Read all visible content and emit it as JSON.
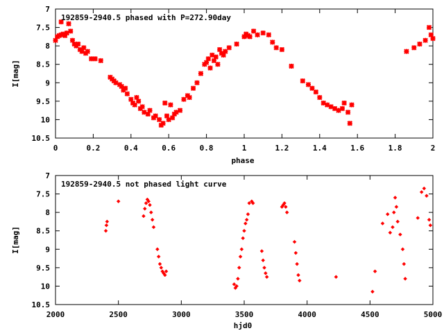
{
  "chart_data": [
    {
      "type": "scatter",
      "title": "192859-2940.5 phased with P=272.90day",
      "xlabel": "phase",
      "ylabel": "I[mag]",
      "xlim": [
        0,
        2
      ],
      "ylim": [
        10.5,
        7
      ],
      "y_inverted": true,
      "xticks": [
        "0",
        "0.2",
        "0.4",
        "0.6",
        "0.8",
        "1",
        "1.2",
        "1.4",
        "1.6",
        "1.8",
        "2"
      ],
      "yticks": [
        "7",
        "7.5",
        "8",
        "8.5",
        "9",
        "9.5",
        "10",
        "10.5"
      ],
      "grid": false,
      "marker_color": "#ff0000",
      "series": [
        {
          "x": [
            0.0,
            0.01,
            0.02,
            0.03,
            0.03,
            0.04,
            0.05,
            0.06,
            0.07,
            0.08,
            0.09,
            0.1,
            0.11,
            0.12,
            0.13,
            0.14,
            0.15,
            0.16,
            0.17,
            0.19,
            0.21,
            0.24,
            0.29,
            0.3,
            0.31,
            0.32,
            0.34,
            0.35,
            0.36,
            0.37,
            0.38,
            0.4,
            0.41,
            0.42,
            0.43,
            0.44,
            0.45,
            0.46,
            0.47,
            0.49,
            0.5,
            0.52,
            0.53,
            0.55,
            0.56,
            0.57,
            0.58,
            0.59,
            0.6,
            0.61,
            0.62,
            0.63,
            0.64,
            0.66,
            0.68,
            0.7,
            0.71,
            0.73,
            0.75,
            0.77,
            0.79,
            0.8,
            0.81,
            0.82,
            0.83,
            0.84,
            0.85,
            0.86,
            0.87,
            0.88,
            0.89,
            0.9,
            0.92,
            0.96,
            1.0,
            1.01,
            1.02,
            1.03,
            1.05,
            1.07,
            1.1,
            1.13,
            1.15,
            1.17,
            1.2,
            1.25,
            1.31,
            1.34,
            1.36,
            1.38,
            1.4,
            1.42,
            1.44,
            1.46,
            1.48,
            1.5,
            1.52,
            1.53,
            1.55,
            1.56,
            1.57,
            1.86,
            1.9,
            1.93,
            1.96,
            1.98,
            1.99,
            2.0
          ],
          "y": [
            7.85,
            7.75,
            7.72,
            7.35,
            7.7,
            7.68,
            7.72,
            7.65,
            7.4,
            7.6,
            7.85,
            7.95,
            8.0,
            7.95,
            8.1,
            8.15,
            8.05,
            8.2,
            8.15,
            8.35,
            8.35,
            8.4,
            8.85,
            8.9,
            8.95,
            9.0,
            9.05,
            9.1,
            9.2,
            9.15,
            9.3,
            9.45,
            9.55,
            9.6,
            9.4,
            9.5,
            9.7,
            9.65,
            9.8,
            9.85,
            9.75,
            9.95,
            9.9,
            10.0,
            10.15,
            10.1,
            9.55,
            9.9,
            10.0,
            9.6,
            9.95,
            9.85,
            9.8,
            9.75,
            9.45,
            9.35,
            9.4,
            9.15,
            9.0,
            8.75,
            8.5,
            8.45,
            8.35,
            8.6,
            8.25,
            8.4,
            8.3,
            8.5,
            8.1,
            8.2,
            8.25,
            8.15,
            8.05,
            7.95,
            7.75,
            7.68,
            7.72,
            7.75,
            7.6,
            7.7,
            7.65,
            7.7,
            7.9,
            8.05,
            8.1,
            8.55,
            8.95,
            9.05,
            9.15,
            9.25,
            9.4,
            9.55,
            9.6,
            9.65,
            9.7,
            9.75,
            9.7,
            9.55,
            9.8,
            10.1,
            9.6,
            8.15,
            8.05,
            7.95,
            7.85,
            7.5,
            7.7,
            7.8
          ]
        }
      ]
    },
    {
      "type": "scatter",
      "title": "192859-2940.5 not phased light curve",
      "xlabel": "hjd0",
      "ylabel": "I[mag]",
      "xlim": [
        2000,
        5000
      ],
      "ylim": [
        10.5,
        7
      ],
      "y_inverted": true,
      "xticks": [
        "2000",
        "2500",
        "3000",
        "3500",
        "4000",
        "4500",
        "5000"
      ],
      "yticks": [
        "7",
        "7.5",
        "8",
        "8.5",
        "9",
        "9.5",
        "10",
        "10.5"
      ],
      "grid": false,
      "marker_color": "#ff0000",
      "series": [
        {
          "x": [
            2400,
            2405,
            2410,
            2500,
            2700,
            2710,
            2720,
            2730,
            2740,
            2750,
            2760,
            2770,
            2780,
            2810,
            2820,
            2830,
            2840,
            2850,
            2860,
            2870,
            2880,
            3420,
            3430,
            3440,
            3450,
            3460,
            3470,
            3480,
            3490,
            3500,
            3510,
            3520,
            3530,
            3540,
            3560,
            3570,
            3640,
            3650,
            3660,
            3670,
            3680,
            3800,
            3810,
            3820,
            3830,
            3840,
            3900,
            3910,
            3920,
            3930,
            3940,
            4230,
            4520,
            4540,
            4600,
            4640,
            4660,
            4680,
            4690,
            4700,
            4710,
            4720,
            4740,
            4760,
            4770,
            4780,
            4880,
            4910,
            4930,
            4950,
            4970,
            4980
          ],
          "y": [
            8.5,
            8.35,
            8.25,
            7.7,
            8.1,
            7.9,
            7.75,
            7.65,
            7.7,
            7.8,
            8.0,
            8.2,
            8.4,
            9.0,
            9.2,
            9.4,
            9.5,
            9.6,
            9.65,
            9.7,
            9.6,
            9.95,
            10.05,
            10.0,
            9.8,
            9.5,
            9.2,
            9.0,
            8.7,
            8.5,
            8.3,
            8.2,
            8.05,
            7.75,
            7.7,
            7.75,
            9.05,
            9.3,
            9.5,
            9.65,
            9.75,
            7.85,
            7.8,
            7.75,
            7.85,
            8.0,
            8.8,
            9.1,
            9.4,
            9.7,
            9.85,
            9.75,
            10.15,
            9.6,
            8.3,
            8.05,
            8.55,
            8.4,
            8.0,
            7.6,
            7.85,
            8.25,
            8.6,
            9.0,
            9.4,
            9.8,
            8.15,
            7.45,
            7.35,
            7.55,
            8.2,
            8.35
          ]
        }
      ]
    }
  ]
}
